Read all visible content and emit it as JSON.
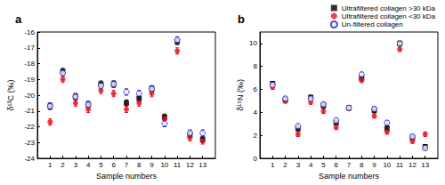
{
  "chart_data": [
    {
      "type": "scatter",
      "title": "a",
      "x_label": "Sample numbers",
      "y_label": "δ¹³C (‰)",
      "x": [
        1,
        2,
        3,
        4,
        5,
        6,
        7,
        8,
        9,
        10,
        11,
        12,
        13
      ],
      "xlim": [
        0,
        14
      ],
      "xticks": [
        1,
        2,
        3,
        4,
        5,
        6,
        7,
        8,
        9,
        10,
        11,
        12,
        13
      ],
      "ylim": [
        -24,
        -16
      ],
      "yticks": [
        -24,
        -23,
        -22,
        -21,
        -20,
        -19,
        -18,
        -17,
        -16
      ],
      "grid": false,
      "series": [
        {
          "name": "Ultrafiltered collagen >30 kDa",
          "color": "#000000",
          "marker": "square",
          "values": [
            -20.7,
            -18.5,
            -20.1,
            -20.6,
            -19.3,
            -19.3,
            -20.5,
            -20.2,
            -19.6,
            -21.4,
            -16.6,
            -22.5,
            -22.8
          ],
          "errors": [
            0.2,
            0.2,
            0.2,
            0.2,
            0.2,
            0.2,
            0.2,
            0.2,
            0.2,
            0.2,
            0.2,
            0.2,
            0.2
          ]
        },
        {
          "name": "Ultrafiltered collagen <30 kDa",
          "color": "#e8101a",
          "marker": "circle",
          "values": [
            -21.7,
            -19.0,
            -20.5,
            -20.9,
            -19.7,
            -19.9,
            -20.9,
            -20.5,
            -19.9,
            -21.5,
            -17.2,
            -22.7,
            -22.9
          ],
          "errors": [
            0.2,
            0.2,
            0.2,
            0.2,
            0.2,
            0.2,
            0.2,
            0.2,
            0.2,
            0.2,
            0.2,
            0.2,
            0.2
          ]
        },
        {
          "name": "Un-filtered collagen",
          "color": "#1f1fd6",
          "marker": "open_circle",
          "values": [
            -20.7,
            -18.6,
            -20.1,
            -20.6,
            -19.4,
            -19.3,
            -19.8,
            -19.9,
            -19.6,
            -21.8,
            -16.5,
            -22.4,
            -22.4
          ],
          "errors": [
            0.2,
            0.2,
            0.2,
            0.2,
            0.2,
            0.2,
            0.2,
            0.2,
            0.2,
            0.2,
            0.2,
            0.2,
            0.2
          ]
        }
      ]
    },
    {
      "type": "scatter",
      "title": "b",
      "x_label": "Sample numbers",
      "y_label": "δ¹⁵N (‰)",
      "x": [
        1,
        2,
        3,
        4,
        5,
        6,
        7,
        8,
        9,
        10,
        11,
        12,
        13
      ],
      "xlim": [
        0,
        14
      ],
      "xticks": [
        1,
        2,
        3,
        4,
        5,
        6,
        7,
        8,
        9,
        10,
        11,
        12,
        13
      ],
      "ylim": [
        0,
        11
      ],
      "yticks": [
        0,
        2,
        4,
        6,
        8,
        10
      ],
      "grid": false,
      "legend": "upper right",
      "series": [
        {
          "name": "Ultrafiltered collagen >30 kDa",
          "color": "#000000",
          "marker": "square",
          "values": [
            6.5,
            5.1,
            2.6,
            5.3,
            4.6,
            3.1,
            4.4,
            7.0,
            4.2,
            2.6,
            10.0,
            1.8,
            1.0
          ],
          "errors": [
            0.2,
            0.2,
            0.2,
            0.2,
            0.2,
            0.2,
            0.2,
            0.2,
            0.2,
            0.2,
            0.2,
            0.2,
            0.2
          ]
        },
        {
          "name": "Ultrafiltered collagen <30 kDa",
          "color": "#e8101a",
          "marker": "circle",
          "values": [
            6.2,
            5.0,
            2.1,
            4.9,
            4.1,
            2.7,
            4.4,
            6.8,
            3.7,
            2.3,
            9.5,
            1.5,
            2.1
          ],
          "errors": [
            0.2,
            0.2,
            0.2,
            0.2,
            0.2,
            0.2,
            0.2,
            0.2,
            0.2,
            0.2,
            0.2,
            0.2,
            0.2
          ]
        },
        {
          "name": "Un-filtered collagen",
          "color": "#1f1fd6",
          "marker": "open_circle",
          "values": [
            6.4,
            5.2,
            2.8,
            5.2,
            4.7,
            3.3,
            4.4,
            7.3,
            4.3,
            3.1,
            10.0,
            1.9,
            0.9
          ],
          "errors": [
            0.2,
            0.2,
            0.2,
            0.2,
            0.2,
            0.2,
            0.2,
            0.2,
            0.2,
            0.2,
            0.2,
            0.2,
            0.2
          ]
        }
      ]
    }
  ]
}
